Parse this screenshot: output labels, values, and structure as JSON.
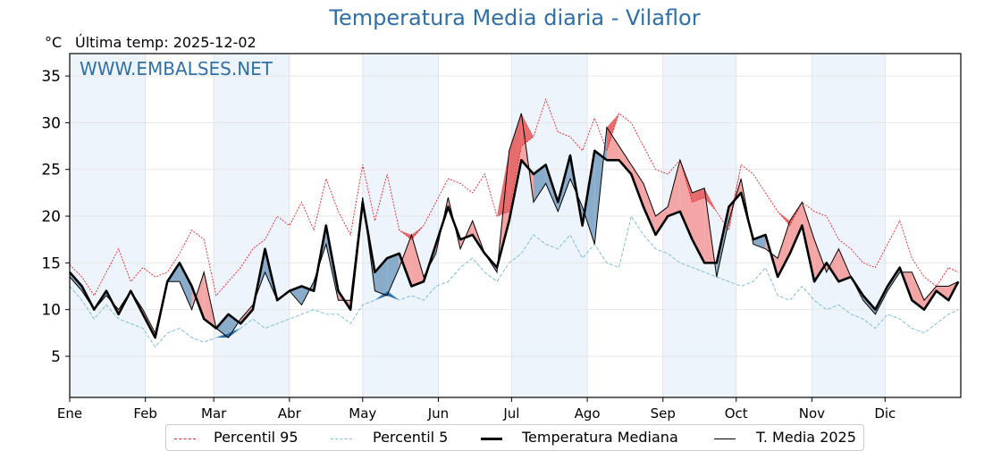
{
  "chart_data": {
    "type": "line",
    "title": "Temperatura Media diaria - Vilaflor",
    "unit_label": "°C",
    "subtitle": "Última temp: 2025-12-02",
    "watermark": "WWW.EMBALSES.NET",
    "xlabel": "",
    "ylabel": "°C",
    "ylim": [
      0.6,
      37.4
    ],
    "xlim": [
      0,
      365
    ],
    "y_ticks": [
      5,
      10,
      15,
      20,
      25,
      30,
      35
    ],
    "x_ticks": [
      {
        "day": 0,
        "label": "Ene"
      },
      {
        "day": 31,
        "label": "Feb"
      },
      {
        "day": 59,
        "label": "Mar"
      },
      {
        "day": 90,
        "label": "Abr"
      },
      {
        "day": 120,
        "label": "May"
      },
      {
        "day": 151,
        "label": "Jun"
      },
      {
        "day": 181,
        "label": "Jul"
      },
      {
        "day": 212,
        "label": "Ago"
      },
      {
        "day": 243,
        "label": "Sep"
      },
      {
        "day": 273,
        "label": "Oct"
      },
      {
        "day": 304,
        "label": "Nov"
      },
      {
        "day": 334,
        "label": "Dic"
      }
    ],
    "grid": true,
    "legend_position": "bottom-center",
    "x_days": [
      0,
      5,
      10,
      15,
      20,
      25,
      30,
      35,
      40,
      45,
      50,
      55,
      60,
      65,
      70,
      75,
      80,
      85,
      90,
      95,
      100,
      105,
      110,
      115,
      120,
      125,
      130,
      135,
      140,
      145,
      150,
      155,
      160,
      165,
      170,
      175,
      180,
      185,
      190,
      195,
      200,
      205,
      210,
      215,
      220,
      225,
      230,
      235,
      240,
      245,
      250,
      255,
      260,
      265,
      270,
      275,
      280,
      285,
      290,
      295,
      300,
      305,
      310,
      315,
      320,
      325,
      330,
      335,
      340,
      345,
      350,
      355,
      360,
      364
    ],
    "series": [
      {
        "name": "Percentil 95",
        "color": "#e8242b",
        "style": "dotted",
        "values": [
          14.8,
          13.5,
          11.5,
          14.0,
          16.5,
          13.0,
          14.5,
          13.5,
          14.0,
          16.0,
          18.5,
          17.5,
          11.5,
          13.0,
          14.5,
          16.5,
          17.5,
          20.0,
          19.0,
          21.5,
          18.5,
          24.0,
          20.5,
          18.0,
          25.5,
          19.5,
          24.5,
          18.5,
          17.5,
          19.0,
          21.5,
          24.0,
          23.5,
          22.5,
          24.5,
          20.0,
          20.5,
          27.5,
          28.5,
          32.5,
          29.0,
          28.5,
          27.0,
          30.5,
          27.0,
          31.0,
          30.0,
          27.5,
          25.0,
          24.5,
          26.0,
          21.5,
          22.0,
          20.5,
          18.5,
          25.5,
          24.5,
          22.5,
          20.5,
          19.0,
          21.5,
          20.5,
          20.0,
          17.5,
          16.5,
          15.0,
          14.5,
          17.0,
          19.5,
          15.5,
          13.5,
          12.5,
          14.5,
          14.0
        ]
      },
      {
        "name": "Percentil 5",
        "color": "#7fbfd9",
        "style": "dashed",
        "values": [
          12.5,
          11.0,
          9.0,
          10.5,
          9.0,
          8.5,
          8.0,
          6.0,
          7.5,
          8.0,
          7.0,
          6.5,
          7.0,
          7.5,
          8.0,
          9.0,
          8.0,
          8.5,
          9.0,
          9.5,
          10.0,
          9.5,
          9.5,
          8.5,
          10.5,
          11.0,
          12.0,
          11.0,
          11.5,
          11.0,
          12.5,
          13.0,
          14.5,
          15.5,
          14.0,
          13.0,
          15.0,
          16.0,
          18.0,
          17.0,
          16.5,
          18.0,
          15.5,
          17.0,
          15.0,
          14.5,
          20.0,
          18.0,
          16.5,
          16.0,
          15.0,
          14.5,
          14.0,
          13.5,
          13.0,
          12.5,
          13.0,
          14.5,
          11.5,
          11.0,
          12.5,
          11.0,
          10.0,
          10.5,
          9.5,
          9.0,
          8.0,
          9.5,
          9.0,
          8.0,
          7.5,
          8.5,
          9.5,
          10.0
        ]
      },
      {
        "name": "Temperatura Mediana",
        "color": "#000000",
        "style": "thick",
        "values": [
          14.0,
          12.5,
          10.0,
          12.0,
          9.5,
          12.0,
          9.5,
          7.0,
          13.0,
          15.0,
          12.5,
          9.0,
          8.0,
          9.5,
          8.5,
          10.0,
          16.5,
          11.0,
          12.0,
          12.5,
          12.0,
          19.0,
          12.0,
          10.0,
          21.5,
          14.0,
          15.5,
          16.0,
          12.5,
          13.0,
          17.0,
          21.0,
          17.5,
          18.0,
          16.0,
          14.5,
          19.5,
          26.0,
          24.5,
          25.5,
          21.5,
          26.5,
          19.0,
          27.0,
          26.0,
          26.0,
          24.5,
          21.0,
          18.0,
          20.0,
          20.5,
          17.5,
          15.0,
          15.0,
          21.0,
          22.5,
          17.5,
          18.0,
          13.5,
          16.0,
          19.0,
          13.0,
          15.0,
          13.0,
          13.5,
          11.5,
          10.0,
          12.5,
          14.5,
          11.0,
          10.0,
          12.0,
          11.0,
          13.0
        ]
      },
      {
        "name": "T. Media 2025",
        "color": "#000000",
        "style": "thin",
        "values": [
          13.5,
          12.0,
          10.0,
          11.5,
          10.0,
          12.0,
          10.0,
          7.5,
          13.0,
          13.0,
          10.0,
          14.0,
          8.0,
          7.0,
          9.0,
          10.5,
          14.0,
          11.0,
          12.0,
          10.5,
          13.0,
          17.0,
          11.0,
          11.0,
          22.0,
          12.0,
          11.5,
          14.5,
          18.0,
          13.5,
          16.0,
          22.0,
          16.5,
          19.5,
          16.0,
          14.0,
          27.0,
          31.0,
          21.5,
          23.5,
          20.5,
          24.0,
          21.0,
          17.0,
          29.5,
          27.5,
          25.5,
          23.5,
          20.0,
          21.0,
          26.0,
          22.5,
          23.0,
          13.5,
          19.5,
          24.0,
          17.0,
          16.5,
          15.5,
          19.5,
          21.5,
          17.5,
          14.0,
          16.5,
          13.5,
          11.0,
          9.5,
          12.0,
          14.0,
          14.0,
          11.0,
          12.5,
          12.5,
          13.0
        ]
      }
    ],
    "fill_colors": {
      "above_p95": "#e66d6e",
      "above_median": "#f4a6a6",
      "below_median": "#8aaccb",
      "below_p5": "#2b6ba5"
    },
    "month_band_color": "#eef4fb"
  },
  "legend": {
    "items": [
      {
        "label": "Percentil 95"
      },
      {
        "label": "Percentil 5"
      },
      {
        "label": "Temperatura Mediana"
      },
      {
        "label": "T. Media 2025"
      }
    ]
  }
}
